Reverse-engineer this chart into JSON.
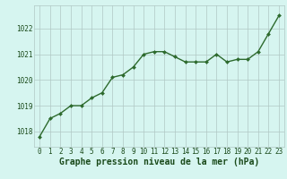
{
  "x": [
    0,
    1,
    2,
    3,
    4,
    5,
    6,
    7,
    8,
    9,
    10,
    11,
    12,
    13,
    14,
    15,
    16,
    17,
    18,
    19,
    20,
    21,
    22,
    23
  ],
  "y": [
    1017.8,
    1018.5,
    1018.7,
    1019.0,
    1019.0,
    1019.3,
    1019.5,
    1020.1,
    1020.2,
    1020.5,
    1021.0,
    1021.1,
    1021.1,
    1020.9,
    1020.7,
    1020.7,
    1020.7,
    1021.0,
    1020.7,
    1020.8,
    1020.8,
    1021.1,
    1021.8,
    1022.5
  ],
  "line_color": "#2d6a2d",
  "marker": "D",
  "marker_size": 2.0,
  "line_width": 1.0,
  "bg_color": "#d6f5f0",
  "grid_color": "#b0c8c4",
  "xlabel": "Graphe pression niveau de la mer (hPa)",
  "xlabel_fontsize": 7,
  "xlabel_color": "#1a4a1a",
  "ytick_labels": [
    "1018",
    "1019",
    "1020",
    "1021",
    "1022"
  ],
  "ytick_values": [
    1018,
    1019,
    1020,
    1021,
    1022
  ],
  "ylim": [
    1017.4,
    1022.9
  ],
  "xlim": [
    -0.5,
    23.5
  ],
  "xtick_labels": [
    "0",
    "1",
    "2",
    "3",
    "4",
    "5",
    "6",
    "7",
    "8",
    "9",
    "10",
    "11",
    "12",
    "13",
    "14",
    "15",
    "16",
    "17",
    "18",
    "19",
    "20",
    "21",
    "22",
    "23"
  ],
  "tick_fontsize": 5.5,
  "tick_color": "#1a4a1a"
}
